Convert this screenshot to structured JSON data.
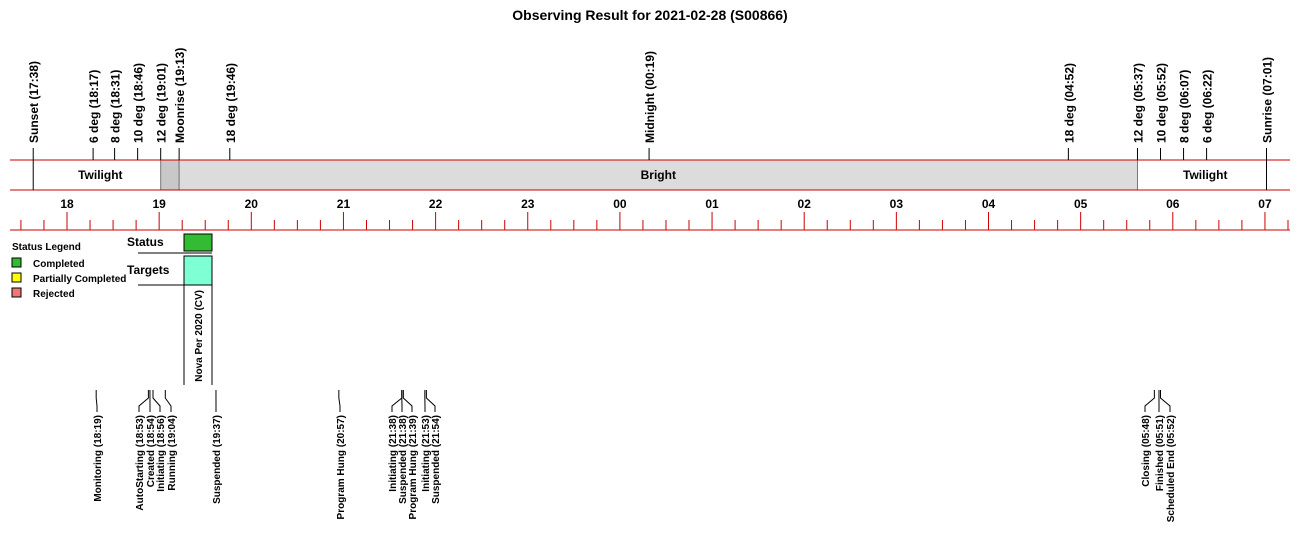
{
  "title": "Observing Result for 2021-02-28 (S00866)",
  "top_markers": [
    {
      "label": "Sunset (17:38)",
      "color": "#000000"
    },
    {
      "label": "6 deg (18:17)",
      "color": "#000000"
    },
    {
      "label": "8 deg (18:31)",
      "color": "#000000"
    },
    {
      "label": "10 deg (18:46)",
      "color": "#000000"
    },
    {
      "label": "12 deg (19:01)",
      "color": "#000000"
    },
    {
      "label": "Moonrise (19:13)",
      "color": "#0000cc"
    },
    {
      "label": "18 deg (19:46)",
      "color": "#000000"
    },
    {
      "label": "Midnight (00:19)",
      "color": "#000000"
    },
    {
      "label": "18 deg (04:52)",
      "color": "#000000"
    },
    {
      "label": "12 deg (05:37)",
      "color": "#000000"
    },
    {
      "label": "10 deg (05:52)",
      "color": "#000000"
    },
    {
      "label": "8 deg (06:07)",
      "color": "#000000"
    },
    {
      "label": "6 deg (06:22)",
      "color": "#000000"
    },
    {
      "label": "Sunrise (07:01)",
      "color": "#000000"
    }
  ],
  "bands": [
    "Twilight",
    "Bright",
    "Twilight"
  ],
  "hours": [
    "18",
    "19",
    "20",
    "21",
    "22",
    "23",
    "00",
    "01",
    "02",
    "03",
    "04",
    "05",
    "06",
    "07"
  ],
  "legend": {
    "title": "Status Legend",
    "items": [
      {
        "label": "Completed",
        "color": "#33bb33"
      },
      {
        "label": "Partially Completed",
        "color": "#ffff00"
      },
      {
        "label": "Rejected",
        "color": "#ee7777"
      }
    ]
  },
  "panel": {
    "status_label": "Status",
    "targets_label": "Targets",
    "status_color": "#33bb33",
    "target_color": "#7fffd4"
  },
  "targets": [
    {
      "label": "Nova Per 2020 (CV)",
      "color": "#0000cc"
    }
  ],
  "events": [
    {
      "label": "Monitoring (18:19)",
      "color": "#000000"
    },
    {
      "label": "AutoStarting (18:53)",
      "color": "#000000"
    },
    {
      "label": "Created (18:54)",
      "color": "#000000"
    },
    {
      "label": "Initiating (18:56)",
      "color": "#000000"
    },
    {
      "label": "Running (19:04)",
      "color": "#000000"
    },
    {
      "label": "Suspended (19:37)",
      "color": "#ff8c00"
    },
    {
      "label": "Program Hung (20:57)",
      "color": "#dd0000"
    },
    {
      "label": "Initiating (21:38)",
      "color": "#000000"
    },
    {
      "label": "Suspended (21:38)",
      "color": "#ff8c00"
    },
    {
      "label": "Program Hung (21:39)",
      "color": "#dd0000"
    },
    {
      "label": "Initiating (21:53)",
      "color": "#000000"
    },
    {
      "label": "Suspended (21:54)",
      "color": "#ff8c00"
    },
    {
      "label": "Closing (05:48)",
      "color": "#000000"
    },
    {
      "label": "Finished (05:51)",
      "color": "#000000"
    },
    {
      "label": "Scheduled End (05:52)",
      "color": "#000000"
    }
  ]
}
